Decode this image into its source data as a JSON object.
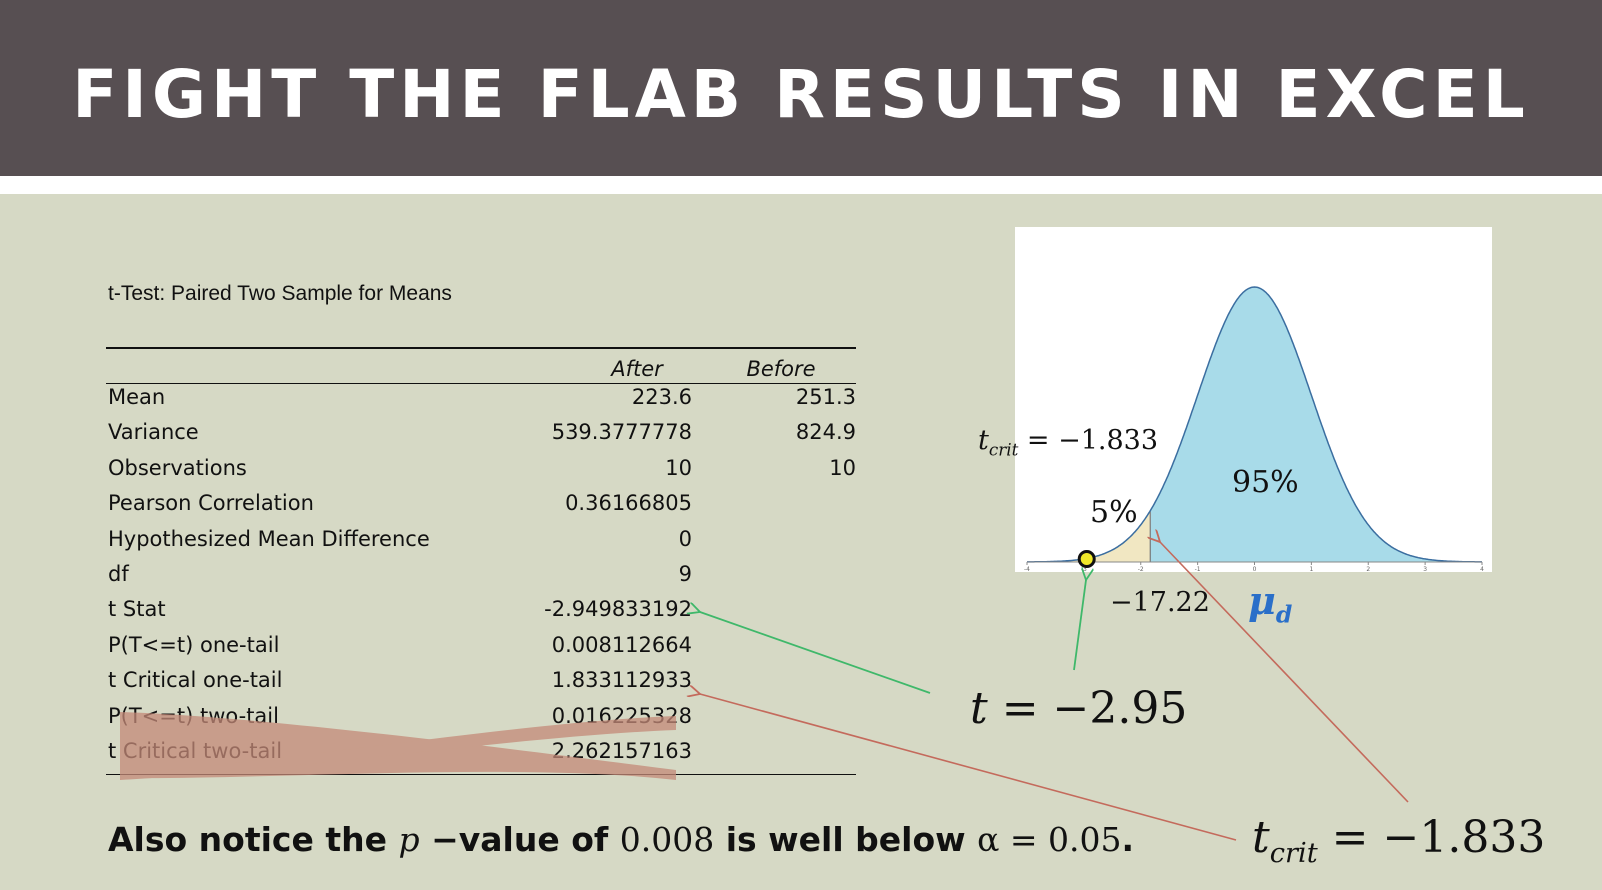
{
  "header": {
    "title": "FIGHT THE FLAB RESULTS IN EXCEL"
  },
  "ttest": {
    "title": "t-Test: Paired Two Sample for Means",
    "columns": [
      "After",
      "Before"
    ],
    "rows": [
      {
        "label": "Mean",
        "after": "223.6",
        "before": "251.3"
      },
      {
        "label": "Variance",
        "after": "539.3777778",
        "before": "824.9"
      },
      {
        "label": "Observations",
        "after": "10",
        "before": "10"
      },
      {
        "label": "Pearson Correlation",
        "after": "0.36166805",
        "before": ""
      },
      {
        "label": "Hypothesized Mean Difference",
        "after": "0",
        "before": ""
      },
      {
        "label": "df",
        "after": "9",
        "before": ""
      },
      {
        "label": "t Stat",
        "after": "-2.949833192",
        "before": ""
      },
      {
        "label": "P(T<=t) one-tail",
        "after": "0.008112664",
        "before": ""
      },
      {
        "label": "t Critical one-tail",
        "after": "1.833112933",
        "before": ""
      },
      {
        "label": "P(T<=t) two-tail",
        "after": "0.016225328",
        "before": ""
      },
      {
        "label": "t Critical two-tail",
        "after": "2.262157163",
        "before": ""
      }
    ],
    "crossed_out_rows": [
      "P(T<=t) two-tail",
      "t Critical two-tail"
    ]
  },
  "footnote": {
    "part1": "Also notice the ",
    "p": "p",
    "part2": " −value of ",
    "pvalue": "0.008",
    "part3": " is well below ",
    "alpha": "α = 0.05",
    "part4": "."
  },
  "annotations": {
    "tcrit_small_label": "= −1.833",
    "tcrit_big_label": "= −1.833",
    "tcrit_symbol": "t",
    "tcrit_sub": "crit",
    "tstat_label": "= −2.95",
    "tstat_symbol": "t",
    "diff_label": "−17.22",
    "mu_symbol": "μ",
    "mu_sub": "d",
    "pct_tail": "5%",
    "pct_body": "95%"
  },
  "chart_data": {
    "type": "area",
    "x_ticks": [
      "-4",
      "-3",
      "-2",
      "-1",
      "0",
      "1",
      "2",
      "3",
      "4"
    ],
    "xlim": [
      -4,
      4
    ],
    "critical_t": -1.833,
    "observed_t": -2.95,
    "tail_fraction": 0.05,
    "body_fraction": 0.95,
    "colors": {
      "body": "#a8dbe9",
      "tail": "#f1e7c2",
      "curve": "#3b6ea0",
      "marker": "#f0e92a"
    }
  },
  "colors": {
    "header_bg": "#574f52",
    "page_bg": "#d6d9c5",
    "green_arrow": "#3fb86a",
    "red_arrow": "#c46a5c",
    "cross": "#c48a78",
    "mu_blue": "#2a6fc9"
  }
}
